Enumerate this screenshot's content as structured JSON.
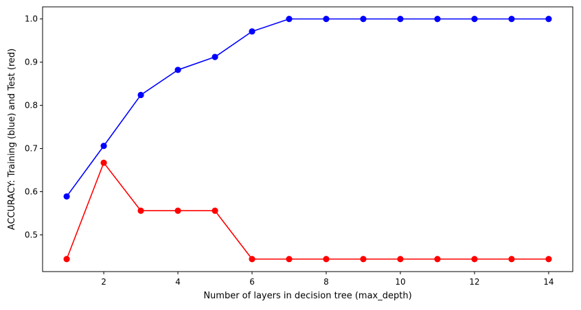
{
  "chart_data": {
    "type": "line",
    "title": "",
    "xlabel": "Number of layers in decision tree (max_depth)",
    "ylabel": "ACCURACY: Training (blue) and Test (red)",
    "xlim": [
      0.35,
      14.65
    ],
    "ylim": [
      0.415,
      1.028
    ],
    "x_ticks": [
      2,
      4,
      6,
      8,
      10,
      12,
      14
    ],
    "y_ticks": [
      0.5,
      0.6,
      0.7,
      0.8,
      0.9,
      1.0
    ],
    "x_tick_labels": [
      "2",
      "4",
      "6",
      "8",
      "10",
      "12",
      "14"
    ],
    "y_tick_labels": [
      "0.5",
      "0.6",
      "0.7",
      "0.8",
      "0.9",
      "1.0"
    ],
    "grid": false,
    "x": [
      1,
      2,
      3,
      4,
      5,
      6,
      7,
      8,
      9,
      10,
      11,
      12,
      13,
      14
    ],
    "series": [
      {
        "color": "#0000ff",
        "values": [
          0.589,
          0.706,
          0.824,
          0.882,
          0.912,
          0.971,
          1.0,
          1.0,
          1.0,
          1.0,
          1.0,
          1.0,
          1.0,
          1.0
        ]
      },
      {
        "color": "#ff0000",
        "values": [
          0.444,
          0.667,
          0.556,
          0.556,
          0.556,
          0.444,
          0.444,
          0.444,
          0.444,
          0.444,
          0.444,
          0.444,
          0.444,
          0.444
        ]
      }
    ]
  }
}
